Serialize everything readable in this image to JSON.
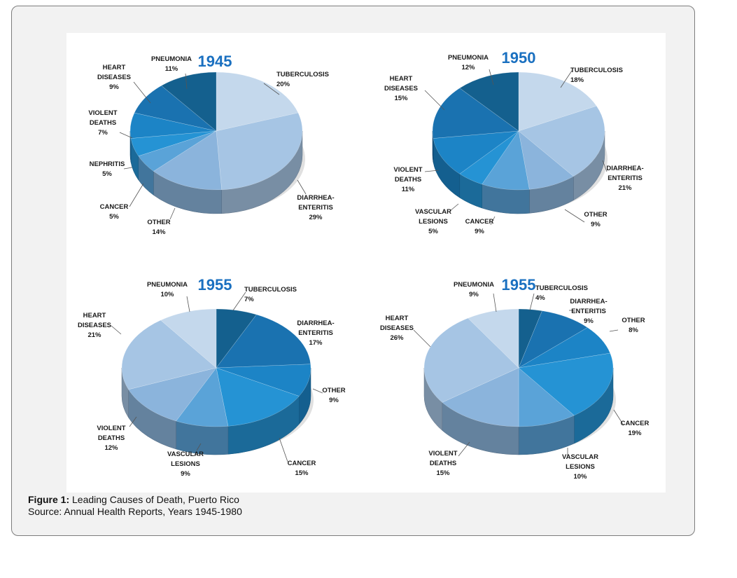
{
  "figure": {
    "caption_label": "Figure 1:",
    "caption_text": "Leading Causes of Death, Puerto Rico",
    "source": "Source: Annual Health Reports, Years 1945-1980"
  },
  "chart_data": [
    {
      "type": "pie",
      "title": "1945",
      "categories": [
        "TUBERCULOSIS",
        "DIARRHEA-ENTERITIS",
        "OTHER",
        "CANCER",
        "NEPHRITIS",
        "VIOLENT DEATHS",
        "HEART DISEASES",
        "PNEUMONIA"
      ],
      "values": [
        20,
        29,
        14,
        5,
        5,
        7,
        9,
        11
      ],
      "value_labels": [
        "20%",
        "29%",
        "14%",
        "5%",
        "5%",
        "7%",
        "9%",
        "11%"
      ],
      "colors": [
        "#c4d8ec",
        "#a6c5e4",
        "#8bb4dc",
        "#5aa3d8",
        "#2593d4",
        "#1c84c6",
        "#1a72b0",
        "#14608e"
      ]
    },
    {
      "type": "pie",
      "title": "1950",
      "categories": [
        "TUBERCULOSIS",
        "DIARRHEA-ENTERITIS",
        "OTHER",
        "CANCER",
        "VASCULAR LESIONS",
        "VIOLENT DEATHS",
        "HEART DISEASES",
        "PNEUMONIA"
      ],
      "values": [
        18,
        21,
        9,
        9,
        5,
        11,
        15,
        12
      ],
      "value_labels": [
        "18%",
        "21%",
        "9%",
        "9%",
        "5%",
        "11%",
        "15%",
        "12%"
      ],
      "colors": [
        "#c4d8ec",
        "#a6c5e4",
        "#8bb4dc",
        "#5aa3d8",
        "#2593d4",
        "#1c84c6",
        "#1a72b0",
        "#14608e"
      ]
    },
    {
      "type": "pie",
      "title": "1955",
      "categories": [
        "TUBERCULOSIS",
        "DIARRHEA-ENTERITIS",
        "OTHER",
        "CANCER",
        "VASCULAR LESIONS",
        "VIOLENT DEATHS",
        "HEART DISEASES",
        "PNEUMONIA"
      ],
      "values": [
        7,
        17,
        9,
        15,
        9,
        12,
        21,
        10
      ],
      "value_labels": [
        "7%",
        "17%",
        "9%",
        "15%",
        "9%",
        "12%",
        "21%",
        "10%"
      ],
      "colors": [
        "#14608e",
        "#1a72b0",
        "#1c84c6",
        "#2593d4",
        "#5aa3d8",
        "#8bb4dc",
        "#a6c5e4",
        "#c4d8ec"
      ]
    },
    {
      "type": "pie",
      "title": "1955",
      "categories": [
        "TUBERCULOSIS",
        "DIARRHEA-ENTERITIS",
        "OTHER",
        "CANCER",
        "VASCULAR LESIONS",
        "VIOLENT DEATHS",
        "HEART DISEASES",
        "PNEUMONIA"
      ],
      "values": [
        4,
        9,
        8,
        19,
        10,
        15,
        26,
        9
      ],
      "value_labels": [
        "4%",
        "9%",
        "8%",
        "19%",
        "10%",
        "15%",
        "26%",
        "9%"
      ],
      "colors": [
        "#14608e",
        "#1a72b0",
        "#1c84c6",
        "#2593d4",
        "#5aa3d8",
        "#8bb4dc",
        "#a6c5e4",
        "#c4d8ec"
      ]
    }
  ]
}
